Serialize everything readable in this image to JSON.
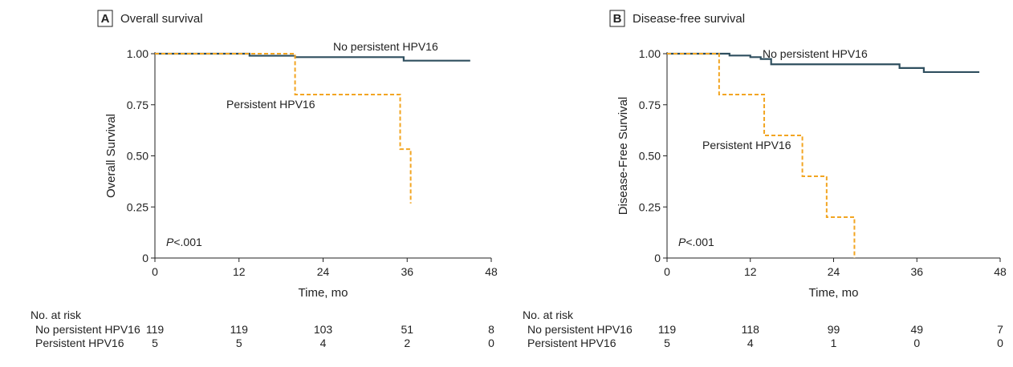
{
  "chart_data": [
    {
      "type": "line",
      "panel_letter": "A",
      "title": "Overall survival",
      "xlabel": "Time, mo",
      "ylabel": "Overall Survival",
      "xlim": [
        0,
        48
      ],
      "ylim": [
        0,
        1
      ],
      "xticks": [
        "0",
        "12",
        "24",
        "36",
        "48"
      ],
      "yticks": [
        "0",
        "0.25",
        "0.50",
        "0.75",
        "1.00"
      ],
      "p_value_prefix": "P",
      "p_value": "<.001",
      "colors": {
        "No persistent HPV16": "#2f4f5f",
        "Persistent HPV16": "#f2a522"
      },
      "series": [
        {
          "name": "No persistent HPV16",
          "style": "solid",
          "x": [
            0,
            13.5,
            20,
            35.5,
            45
          ],
          "y": [
            1.0,
            0.99,
            0.983,
            0.966,
            0.966
          ]
        },
        {
          "name": "Persistent HPV16",
          "style": "dashed",
          "x": [
            0,
            20,
            35,
            36.5
          ],
          "y": [
            1.0,
            0.8,
            0.533,
            0.267
          ]
        }
      ],
      "risk_table": {
        "title": "No. at risk",
        "times": [
          0,
          12,
          24,
          36,
          48
        ],
        "rows": [
          {
            "label": "No persistent HPV16",
            "values": [
              "119",
              "119",
              "103",
              "51",
              "8"
            ]
          },
          {
            "label": "Persistent HPV16",
            "values": [
              "5",
              "5",
              "4",
              "2",
              "0"
            ]
          }
        ]
      }
    },
    {
      "type": "line",
      "panel_letter": "B",
      "title": "Disease-free survival",
      "xlabel": "Time, mo",
      "ylabel": "Disease-Free Survival",
      "xlim": [
        0,
        48
      ],
      "ylim": [
        0,
        1
      ],
      "xticks": [
        "0",
        "12",
        "24",
        "36",
        "48"
      ],
      "yticks": [
        "0",
        "0.25",
        "0.50",
        "0.75",
        "1.00"
      ],
      "p_value_prefix": "P",
      "p_value": "<.001",
      "colors": {
        "No persistent HPV16": "#2f4f5f",
        "Persistent HPV16": "#f2a522"
      },
      "series": [
        {
          "name": "No persistent HPV16",
          "style": "solid",
          "x": [
            0,
            9,
            12,
            13.5,
            15,
            33.5,
            37,
            45
          ],
          "y": [
            1.0,
            0.991,
            0.983,
            0.974,
            0.948,
            0.93,
            0.91,
            0.91
          ]
        },
        {
          "name": "Persistent HPV16",
          "style": "dashed",
          "x": [
            0,
            7.5,
            14,
            19.5,
            23,
            27
          ],
          "y": [
            1.0,
            0.8,
            0.6,
            0.4,
            0.2,
            0.0
          ]
        }
      ],
      "risk_table": {
        "title": "No. at risk",
        "times": [
          0,
          12,
          24,
          36,
          48
        ],
        "rows": [
          {
            "label": "No persistent HPV16",
            "values": [
              "119",
              "118",
              "99",
              "49",
              "7"
            ]
          },
          {
            "label": "Persistent HPV16",
            "values": [
              "5",
              "4",
              "1",
              "0",
              "0"
            ]
          }
        ]
      }
    }
  ]
}
